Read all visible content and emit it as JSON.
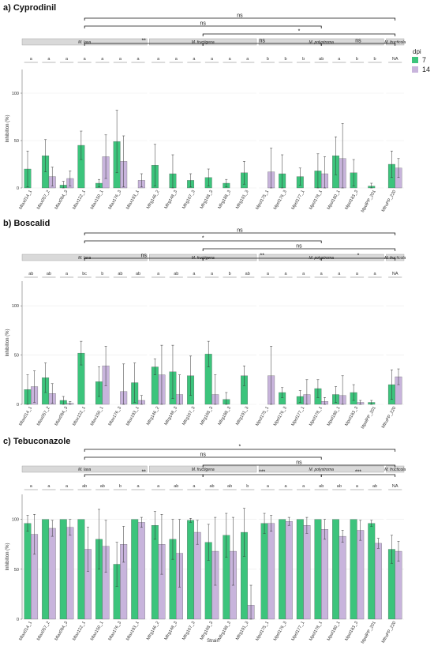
{
  "colors": {
    "dpi7": "#3cc47c",
    "dpi14": "#c8b4dc",
    "strip": "#d9d9d9",
    "grid": "#ebebeb"
  },
  "legend": {
    "title": "dpi",
    "items": [
      "7",
      "14"
    ]
  },
  "chart_data": [
    {
      "type": "bar",
      "title": "a) Cyprodinil",
      "xlabel": "",
      "ylabel": "Inhibition (%)",
      "ylim": [
        0,
        125
      ],
      "yticks": [
        0,
        50,
        100
      ],
      "facets": [
        {
          "label": "M. laxa",
          "categories": [
            "Mlax014_1",
            "Mlax057_2",
            "Mlax084_3",
            "Mlax122_1",
            "Mlax150_1",
            "Mlax176_3",
            "Mlax193_1"
          ],
          "letters": [
            "a",
            "a",
            "a",
            "a",
            "a",
            "a",
            "a"
          ]
        },
        {
          "label": "M. fructigena",
          "categories": [
            "Mfrg146_2",
            "Mfrg148_3",
            "Mfrg167_3",
            "Mfrg168_3",
            "Mfrg188_3",
            "Mfrg191_3"
          ],
          "letters": [
            "a",
            "a",
            "a",
            "a",
            "a",
            "a"
          ]
        },
        {
          "label": "M. polystroma",
          "categories": [
            "Mpol175_1",
            "Mpol176_3",
            "Mpol177_1",
            "Mpol178_1",
            "Mpol180_1",
            "Mpol183_3",
            "MpolPP_201"
          ],
          "letters": [
            "b",
            "b",
            "b",
            "ab",
            "a",
            "b",
            "b"
          ]
        },
        {
          "label": "M. fructicola",
          "categories": [
            "MfruPP_220"
          ],
          "letters": [
            "NA"
          ]
        }
      ],
      "series": [
        {
          "name": "7",
          "values": [
            20,
            34,
            3,
            45,
            5,
            49,
            0,
            24,
            15,
            8,
            11,
            5,
            16,
            0,
            15,
            12,
            18,
            34,
            16,
            2,
            25
          ],
          "err": [
            19,
            17,
            4,
            15,
            4,
            33,
            0,
            22,
            20,
            7,
            9,
            4,
            12,
            0,
            20,
            9,
            18,
            20,
            14,
            3,
            14
          ]
        },
        {
          "name": "14",
          "values": [
            0,
            12,
            10,
            0,
            33,
            28,
            8,
            0,
            0,
            0,
            0,
            0,
            0,
            17,
            0,
            0,
            15,
            31,
            0,
            0,
            21
          ],
          "err": [
            0,
            10,
            8,
            0,
            23,
            27,
            7,
            0,
            0,
            0,
            0,
            0,
            0,
            25,
            0,
            0,
            18,
            37,
            0,
            0,
            10
          ]
        }
      ],
      "comparisons": [
        {
          "label": "ns",
          "from": 0,
          "to": 3
        },
        {
          "label": "ns",
          "from": 0,
          "to": 2
        },
        {
          "label": "*",
          "from": 1,
          "to": 3
        },
        {
          "label": "**",
          "from": 0,
          "to": 1
        },
        {
          "label": "ns",
          "from": 1,
          "to": 2
        },
        {
          "label": "ns",
          "from": 2,
          "to": 3
        }
      ]
    },
    {
      "type": "bar",
      "title": "b) Boscalid",
      "xlabel": "",
      "ylabel": "Inhibition (%)",
      "ylim": [
        0,
        125
      ],
      "yticks": [
        0,
        50,
        100
      ],
      "facets": [
        {
          "label": "M. laxa",
          "categories": [
            "Mlax014_1",
            "Mlax057_2",
            "Mlax084_3",
            "Mlax122_1",
            "Mlax150_1",
            "Mlax176_3",
            "Mlax193_1"
          ],
          "letters": [
            "ab",
            "ab",
            "a",
            "bc",
            "b",
            "ab",
            "ab"
          ]
        },
        {
          "label": "M. fructigena",
          "categories": [
            "Mfrg146_2",
            "Mfrg148_3",
            "Mfrg167_3",
            "Mfrg168_3",
            "Mfrg188_3",
            "Mfrg191_3"
          ],
          "letters": [
            "a",
            "ab",
            "a",
            "a",
            "b",
            "ab"
          ]
        },
        {
          "label": "M. polystroma",
          "categories": [
            "Mpol175_1",
            "Mpol176_3",
            "Mpol177_1",
            "Mpol178_1",
            "Mpol180_1",
            "Mpol183_3",
            "MpolPP_201"
          ],
          "letters": [
            "a",
            "a",
            "a",
            "a",
            "a",
            "a",
            "a"
          ]
        },
        {
          "label": "M. fructicola",
          "categories": [
            "MfruPP_220"
          ],
          "letters": [
            "NA"
          ]
        }
      ],
      "series": [
        {
          "name": "7",
          "values": [
            15,
            27,
            4,
            52,
            23,
            0,
            22,
            38,
            33,
            29,
            51,
            5,
            29,
            0,
            12,
            8,
            16,
            10,
            12,
            2,
            20
          ],
          "err": [
            15,
            15,
            4,
            12,
            15,
            0,
            20,
            8,
            27,
            20,
            13,
            7,
            10,
            0,
            5,
            6,
            9,
            8,
            8,
            2,
            15
          ]
        },
        {
          "name": "14",
          "values": [
            18,
            11,
            1,
            0,
            39,
            13,
            4,
            30,
            10,
            0,
            10,
            0,
            0,
            29,
            0,
            10,
            3,
            9,
            2,
            0,
            28
          ],
          "err": [
            16,
            10,
            2,
            0,
            20,
            28,
            5,
            30,
            20,
            0,
            20,
            0,
            0,
            30,
            0,
            15,
            4,
            20,
            2,
            0,
            8
          ]
        }
      ],
      "comparisons": [
        {
          "label": "ns",
          "from": 0,
          "to": 3
        },
        {
          "label": "*",
          "from": 0,
          "to": 2
        },
        {
          "label": "ns",
          "from": 1,
          "to": 3
        },
        {
          "label": "ns",
          "from": 0,
          "to": 1
        },
        {
          "label": "**",
          "from": 1,
          "to": 2
        },
        {
          "label": "*",
          "from": 2,
          "to": 3
        }
      ]
    },
    {
      "type": "bar",
      "title": "c) Tebuconazole",
      "xlabel": "Strain",
      "ylabel": "Inhibition (%)",
      "ylim": [
        0,
        125
      ],
      "yticks": [
        0,
        50,
        100
      ],
      "facets": [
        {
          "label": "M. laxa",
          "categories": [
            "Mlax014_1",
            "Mlax057_2",
            "Mlax084_3",
            "Mlax122_1",
            "Mlax150_1",
            "Mlax176_3",
            "Mlax193_1"
          ],
          "letters": [
            "a",
            "a",
            "a",
            "ab",
            "ab",
            "b",
            "a"
          ]
        },
        {
          "label": "M. fructigena",
          "categories": [
            "Mfrg146_2",
            "Mfrg148_3",
            "Mfrg167_3",
            "Mfrg168_3",
            "Mfrg188_3",
            "Mfrg191_3"
          ],
          "letters": [
            "a",
            "ab",
            "a",
            "ab",
            "ab",
            "b"
          ]
        },
        {
          "label": "M. polystroma",
          "categories": [
            "Mpol175_1",
            "Mpol176_3",
            "Mpol177_1",
            "Mpol178_1",
            "Mpol180_1",
            "Mpol183_3",
            "MpolPP_201"
          ],
          "letters": [
            "a",
            "a",
            "a",
            "ab",
            "ab",
            "a",
            "ab"
          ]
        },
        {
          "label": "M. fructicola",
          "categories": [
            "MfruPP_220"
          ],
          "letters": [
            "NA"
          ]
        }
      ],
      "series": [
        {
          "name": "7",
          "values": [
            96,
            100,
            100,
            100,
            80,
            55,
            100,
            94,
            80,
            99,
            77,
            84,
            87,
            96,
            100,
            100,
            100,
            100,
            100,
            96,
            70
          ],
          "err": [
            8,
            0,
            0,
            0,
            30,
            22,
            0,
            14,
            20,
            2,
            18,
            22,
            24,
            10,
            0,
            0,
            0,
            0,
            0,
            3,
            14
          ]
        },
        {
          "name": "14",
          "values": [
            85,
            91,
            92,
            70,
            73,
            75,
            97,
            75,
            66,
            87,
            68,
            68,
            14,
            96,
            98,
            94,
            90,
            83,
            89,
            76,
            68
          ],
          "err": [
            20,
            8,
            8,
            22,
            26,
            18,
            5,
            30,
            34,
            12,
            34,
            34,
            20,
            8,
            4,
            8,
            10,
            6,
            10,
            5,
            10
          ]
        }
      ],
      "comparisons": [
        {
          "label": "*",
          "from": 0,
          "to": 3
        },
        {
          "label": "ns",
          "from": 0,
          "to": 2
        },
        {
          "label": "ns",
          "from": 1,
          "to": 3
        },
        {
          "label": "**",
          "from": 0,
          "to": 1
        },
        {
          "label": "***",
          "from": 1,
          "to": 2
        },
        {
          "label": "***",
          "from": 2,
          "to": 3
        }
      ]
    }
  ]
}
